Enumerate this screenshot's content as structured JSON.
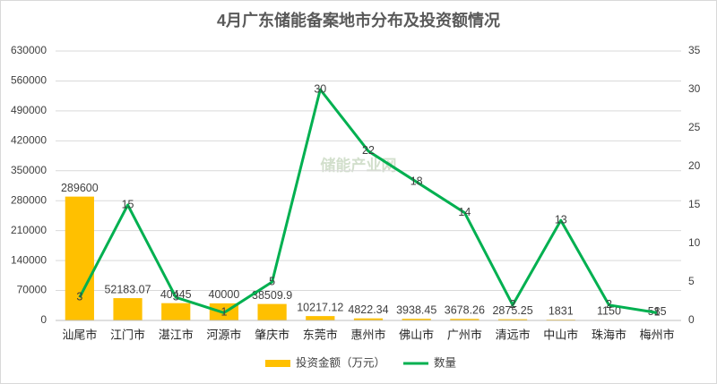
{
  "chart_data": {
    "type": "bar-line",
    "title": "4月广东储能备案地市分布及投资额情况",
    "watermark": "储能产业网",
    "categories": [
      "汕尾市",
      "江门市",
      "湛江市",
      "河源市",
      "肇庆市",
      "东莞市",
      "惠州市",
      "佛山市",
      "广州市",
      "清远市",
      "中山市",
      "珠海市",
      "梅州市"
    ],
    "series": [
      {
        "name": "投资金额（万元）",
        "type": "bar",
        "color": "#ffc000",
        "values": [
          289600,
          52183.07,
          40445,
          40000,
          38509.9,
          10217.12,
          4822.34,
          3938.45,
          3678.26,
          2875.25,
          1831,
          1150,
          585
        ]
      },
      {
        "name": "数量",
        "type": "line",
        "axis": "y2",
        "color": "#00b050",
        "values": [
          3,
          15,
          3,
          1,
          5,
          30,
          22,
          18,
          14,
          2,
          13,
          2,
          1
        ]
      }
    ],
    "ylim": [
      0,
      630000
    ],
    "yticks": [
      0,
      70000,
      140000,
      210000,
      280000,
      350000,
      420000,
      490000,
      560000,
      630000
    ],
    "y2lim": [
      0,
      35
    ],
    "y2ticks": [
      0,
      5,
      10,
      15,
      20,
      25,
      30,
      35
    ],
    "grid": true,
    "legend": "bottom"
  }
}
